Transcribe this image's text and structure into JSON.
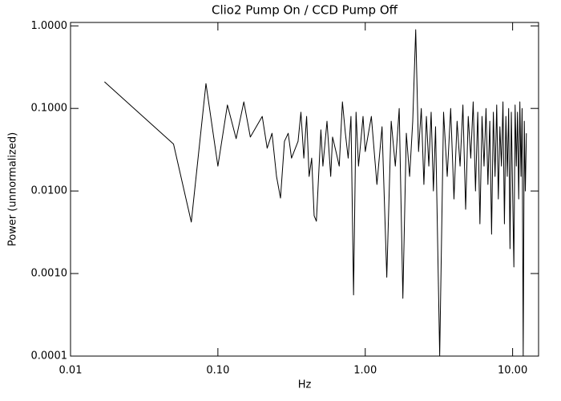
{
  "chart_data": {
    "type": "line",
    "title": "Clio2 Pump On / CCD Pump Off",
    "x_label": "Hz",
    "y_label": "Power (unnormalized)",
    "x_log": true,
    "y_log": true,
    "xlim": [
      0.01,
      15
    ],
    "ylim": [
      0.0001,
      1.1
    ],
    "xticks": [
      {
        "value": 0.01,
        "label": "0.01"
      },
      {
        "value": 0.1,
        "label": "0.10"
      },
      {
        "value": 1,
        "label": "1.00"
      },
      {
        "value": 10,
        "label": "10.00"
      }
    ],
    "yticks": [
      {
        "value": 0.0001,
        "label": "0.0001"
      },
      {
        "value": 0.001,
        "label": "0.0010"
      },
      {
        "value": 0.01,
        "label": "0.0100"
      },
      {
        "value": 0.1,
        "label": "0.1000"
      },
      {
        "value": 1,
        "label": "1.0000"
      }
    ],
    "series": [
      {
        "color": "#000000",
        "x": [
          0.017,
          0.05,
          0.066,
          0.083,
          0.1,
          0.116,
          0.133,
          0.15,
          0.166,
          0.2,
          0.216,
          0.233,
          0.25,
          0.266,
          0.283,
          0.3,
          0.316,
          0.35,
          0.366,
          0.383,
          0.4,
          0.416,
          0.433,
          0.45,
          0.466,
          0.5,
          0.516,
          0.55,
          0.583,
          0.6,
          0.633,
          0.666,
          0.7,
          0.733,
          0.766,
          0.8,
          0.833,
          0.866,
          0.9,
          0.933,
          0.966,
          1.0,
          1.1,
          1.2,
          1.3,
          1.4,
          1.5,
          1.6,
          1.7,
          1.8,
          1.9,
          2.0,
          2.1,
          2.2,
          2.3,
          2.4,
          2.5,
          2.6,
          2.7,
          2.8,
          2.9,
          3.0,
          3.2,
          3.4,
          3.6,
          3.8,
          4.0,
          4.2,
          4.4,
          4.6,
          4.8,
          5.0,
          5.2,
          5.4,
          5.6,
          5.8,
          6.0,
          6.2,
          6.4,
          6.6,
          6.8,
          7.0,
          7.2,
          7.4,
          7.6,
          7.8,
          8.0,
          8.2,
          8.4,
          8.6,
          8.8,
          9.0,
          9.2,
          9.4,
          9.6,
          9.8,
          10.0,
          10.2,
          10.4,
          10.6,
          10.8,
          11.0,
          11.2,
          11.4,
          11.6,
          11.8,
          12.0,
          12.2,
          12.4
        ],
        "values": [
          0.21,
          0.037,
          0.0042,
          0.2,
          0.02,
          0.11,
          0.043,
          0.12,
          0.045,
          0.08,
          0.033,
          0.05,
          0.015,
          0.0082,
          0.04,
          0.05,
          0.025,
          0.04,
          0.09,
          0.025,
          0.08,
          0.015,
          0.025,
          0.005,
          0.0043,
          0.055,
          0.02,
          0.07,
          0.015,
          0.045,
          0.03,
          0.02,
          0.12,
          0.05,
          0.025,
          0.08,
          0.00055,
          0.09,
          0.02,
          0.04,
          0.08,
          0.03,
          0.08,
          0.012,
          0.06,
          0.0009,
          0.07,
          0.02,
          0.1,
          0.0005,
          0.05,
          0.015,
          0.07,
          0.9,
          0.03,
          0.1,
          0.012,
          0.08,
          0.02,
          0.09,
          0.01,
          0.06,
          0.0001,
          0.09,
          0.015,
          0.1,
          0.008,
          0.07,
          0.02,
          0.11,
          0.006,
          0.08,
          0.025,
          0.12,
          0.01,
          0.09,
          0.004,
          0.08,
          0.02,
          0.1,
          0.012,
          0.07,
          0.003,
          0.09,
          0.015,
          0.11,
          0.008,
          0.06,
          0.02,
          0.12,
          0.004,
          0.08,
          0.015,
          0.1,
          0.002,
          0.09,
          0.01,
          0.0012,
          0.11,
          0.02,
          0.09,
          0.008,
          0.12,
          0.015,
          0.1,
          0.0001,
          0.07,
          0.01,
          0.05
        ]
      }
    ]
  }
}
